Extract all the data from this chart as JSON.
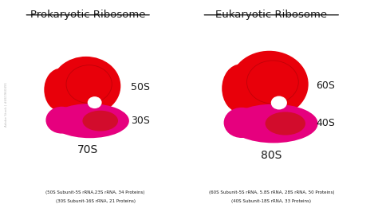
{
  "title_left": "Prokaryotic Ribosome",
  "title_right": "Eukaryotic Ribosome",
  "label_70S": "70S",
  "label_80S": "80S",
  "label_50S": "50S",
  "label_30S": "30S",
  "label_60S": "60S",
  "label_40S": "40S",
  "caption_left_1": "(50S Subunit-5S rRNA,23S rRNA, 34 Proteins)",
  "caption_left_2": "(30S Subunit-16S rRNA, 21 Proteins)",
  "caption_right_1": "(60S Subunit-5S rRNA, 5.8S rRNA, 28S rRNA, 50 Proteins)",
  "caption_right_2": "(40S Subunit-18S rRNA, 33 Proteins)",
  "bg_color": "#ffffff",
  "color_large_subunit": "#e8000a",
  "color_small_subunit_pink": "#e6007e",
  "color_small_subunit_red": "#cc1111",
  "text_color": "#1a1a1a",
  "watermark": "Adobe Stock | #461960491"
}
